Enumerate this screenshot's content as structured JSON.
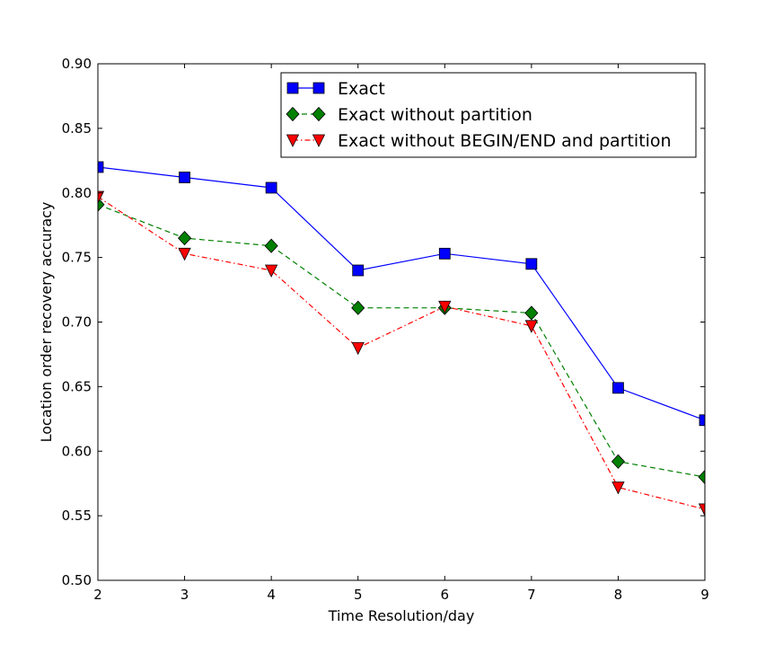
{
  "chart_data": {
    "type": "line",
    "title": "",
    "xlabel": "Time Resolution/day",
    "ylabel": "Location order recovery accuracy",
    "xlim": [
      2,
      9
    ],
    "ylim": [
      0.5,
      0.9
    ],
    "xticks": [
      2,
      3,
      4,
      5,
      6,
      7,
      8,
      9
    ],
    "yticks": [
      0.5,
      0.55,
      0.6,
      0.65,
      0.7,
      0.75,
      0.8,
      0.85,
      0.9
    ],
    "xtick_labels": [
      "2",
      "3",
      "4",
      "5",
      "6",
      "7",
      "8",
      "9"
    ],
    "ytick_labels": [
      "0.50",
      "0.55",
      "0.60",
      "0.65",
      "0.70",
      "0.75",
      "0.80",
      "0.85",
      "0.90"
    ],
    "grid": false,
    "legend_position": "top-right",
    "x": [
      2,
      3,
      4,
      5,
      6,
      7,
      8,
      9
    ],
    "series": [
      {
        "name": "Exact",
        "color": "#0000ff",
        "marker": "square",
        "linestyle": "solid",
        "values": [
          0.82,
          0.812,
          0.804,
          0.74,
          0.753,
          0.745,
          0.649,
          0.624
        ]
      },
      {
        "name": "Exact without partition",
        "color": "#008000",
        "marker": "diamond",
        "linestyle": "dashed",
        "values": [
          0.791,
          0.765,
          0.759,
          0.711,
          0.711,
          0.707,
          0.592,
          0.58
        ]
      },
      {
        "name": "Exact without BEGIN/END and partition",
        "color": "#ff0000",
        "marker": "triangle-down",
        "linestyle": "dashdot",
        "values": [
          0.797,
          0.753,
          0.74,
          0.68,
          0.712,
          0.697,
          0.572,
          0.555
        ]
      }
    ]
  }
}
